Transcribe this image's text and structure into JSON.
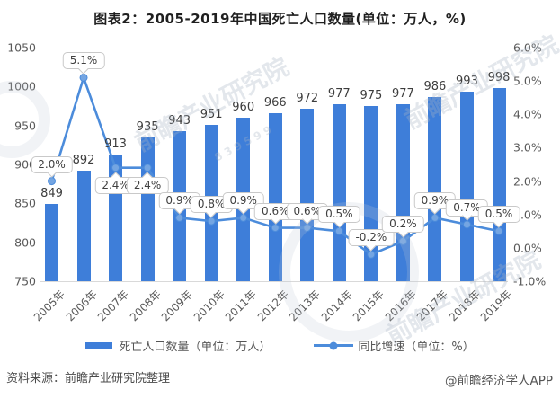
{
  "chart_data": {
    "type": "bar",
    "subtype": "bar-line-combo",
    "title": "图表2：2005-2019年中国死亡人口数量(单位：万人，%)",
    "categories": [
      "2005年",
      "2006年",
      "2007年",
      "2008年",
      "2009年",
      "2010年",
      "2011年",
      "2012年",
      "2013年",
      "2014年",
      "2015年",
      "2016年",
      "2017年",
      "2018年",
      "2019年"
    ],
    "series": [
      {
        "name": "死亡人口数量（单位：万人）",
        "type": "bar",
        "axis": "left",
        "color": "#3E7ED9",
        "values": [
          849,
          892,
          913,
          935,
          943,
          951,
          960,
          966,
          972,
          977,
          975,
          977,
          986,
          993,
          998
        ]
      },
      {
        "name": "同比增速（单位：%）",
        "type": "line",
        "axis": "right",
        "color": "#4C8CDB",
        "values": [
          2.0,
          5.1,
          2.4,
          2.4,
          0.9,
          0.8,
          0.9,
          0.6,
          0.6,
          0.5,
          -0.2,
          0.2,
          0.9,
          0.7,
          0.5
        ],
        "point_labels": [
          "2.0%",
          "5.1%",
          "2.4%",
          "2.4%",
          "0.9%",
          "0.8%",
          "0.9%",
          "0.6%",
          "0.6%",
          "0.5%",
          "-0.2%",
          "0.2%",
          "0.9%",
          "0.7%",
          "0.5%"
        ]
      }
    ],
    "left_axis": {
      "min": 750,
      "max": 1050,
      "step": 50,
      "ticks": [
        "1050",
        "1000",
        "950",
        "900",
        "850",
        "800",
        "750"
      ]
    },
    "right_axis": {
      "min": -1.0,
      "max": 6.0,
      "step": 1.0,
      "ticks": [
        "6.0%",
        "5.0%",
        "4.0%",
        "3.0%",
        "2.0%",
        "1.0%",
        "0.0%",
        "-1.0%"
      ]
    },
    "grid": false,
    "legend_position": "bottom"
  },
  "footer": {
    "source": "资料来源：前瞻产业研究院整理",
    "credit": "@前瞻经济学人APP"
  },
  "watermark": {
    "text": "前瞻产业研究院",
    "digits": "839599"
  }
}
